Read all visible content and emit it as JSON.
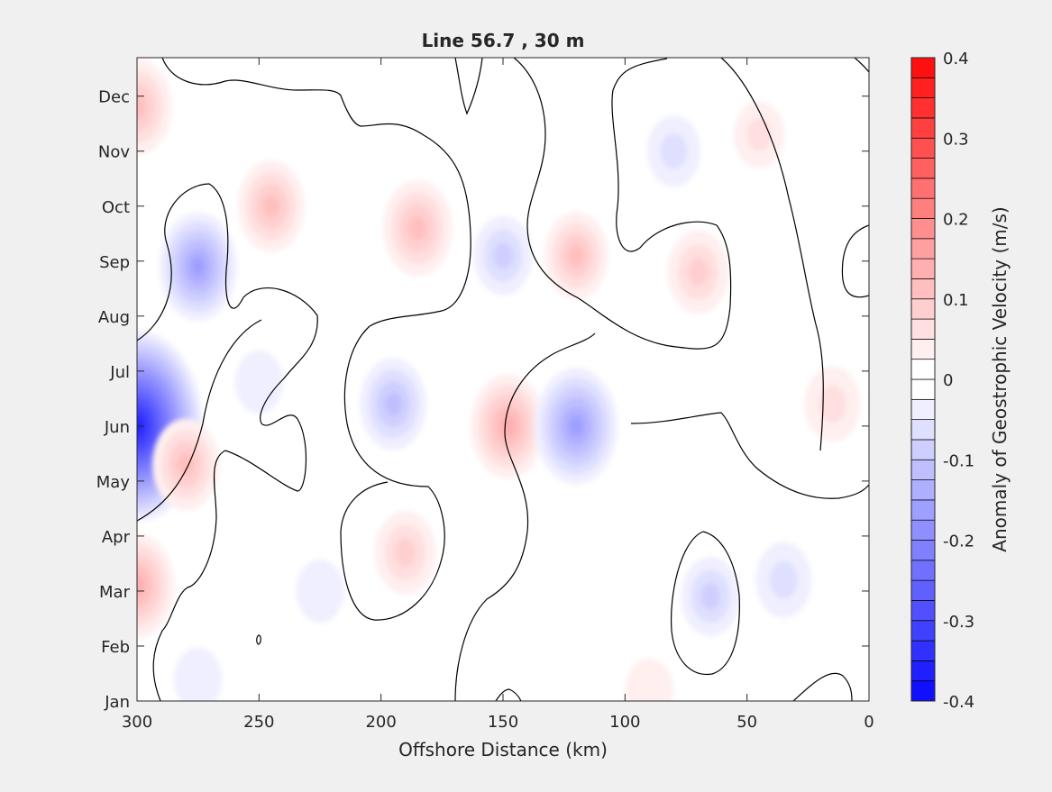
{
  "chart_data": {
    "type": "heatmap",
    "subtype": "filled-contour",
    "title": "Line 56.7 , 30 m",
    "xlabel": "Offshore Distance (km)",
    "ylabel": "",
    "x_reversed": true,
    "xlim": [
      0,
      300
    ],
    "x_ticks": [
      {
        "value": 300,
        "label": "300"
      },
      {
        "value": 250,
        "label": "250"
      },
      {
        "value": 200,
        "label": "200"
      },
      {
        "value": 150,
        "label": "150"
      },
      {
        "value": 100,
        "label": "100"
      },
      {
        "value": 50,
        "label": "50"
      },
      {
        "value": 0,
        "label": "0"
      }
    ],
    "y_months": [
      "Jan",
      "Feb",
      "Mar",
      "Apr",
      "May",
      "Jun",
      "Jul",
      "Aug",
      "Sep",
      "Oct",
      "Nov",
      "Dec"
    ],
    "ylim_month": [
      1,
      12.7
    ],
    "colorbar": {
      "label": "Anomaly of Geostrophic Velocity (m/s)",
      "range": [
        -0.4,
        0.4
      ],
      "step": 0.025,
      "tick_labels": [
        {
          "value": 0.4,
          "label": "0.4"
        },
        {
          "value": 0.3,
          "label": "0.3"
        },
        {
          "value": 0.2,
          "label": "0.2"
        },
        {
          "value": 0.1,
          "label": "0.1"
        },
        {
          "value": 0.0,
          "label": "0"
        },
        {
          "value": -0.1,
          "label": "-0.1"
        },
        {
          "value": -0.2,
          "label": "-0.2"
        },
        {
          "value": -0.3,
          "label": "-0.3"
        },
        {
          "value": -0.4,
          "label": "-0.4"
        }
      ],
      "colormap": {
        "negative": "#0000ff",
        "zero": "#ffffff",
        "positive": "#ff0000"
      }
    },
    "zero_contour_color": "#000000",
    "grid": false,
    "anomaly_features": [
      {
        "x_km": 300,
        "month": 6.0,
        "value": -0.34
      },
      {
        "x_km": 275,
        "month": 8.9,
        "value": -0.14
      },
      {
        "x_km": 280,
        "month": 5.3,
        "value": 0.1
      },
      {
        "x_km": 300,
        "month": 3.1,
        "value": 0.13
      },
      {
        "x_km": 300,
        "month": 11.8,
        "value": 0.11
      },
      {
        "x_km": 245,
        "month": 10.0,
        "value": 0.1
      },
      {
        "x_km": 185,
        "month": 9.6,
        "value": 0.11
      },
      {
        "x_km": 150,
        "month": 9.1,
        "value": -0.07
      },
      {
        "x_km": 195,
        "month": 6.4,
        "value": -0.1
      },
      {
        "x_km": 148,
        "month": 6.0,
        "value": 0.13
      },
      {
        "x_km": 120,
        "month": 6.0,
        "value": -0.16
      },
      {
        "x_km": 190,
        "month": 3.7,
        "value": 0.08
      },
      {
        "x_km": 120,
        "month": 9.1,
        "value": 0.09
      },
      {
        "x_km": 70,
        "month": 8.8,
        "value": 0.08
      },
      {
        "x_km": 80,
        "month": 11.0,
        "value": -0.05
      },
      {
        "x_km": 65,
        "month": 2.9,
        "value": -0.07
      },
      {
        "x_km": 35,
        "month": 3.2,
        "value": -0.06
      },
      {
        "x_km": 15,
        "month": 6.4,
        "value": 0.06
      },
      {
        "x_km": 45,
        "month": 11.3,
        "value": 0.04
      },
      {
        "x_km": 250,
        "month": 6.8,
        "value": -0.03
      },
      {
        "x_km": 275,
        "month": 1.4,
        "value": -0.03
      },
      {
        "x_km": 225,
        "month": 3.0,
        "value": -0.03
      },
      {
        "x_km": 90,
        "month": 1.2,
        "value": 0.03
      }
    ]
  }
}
